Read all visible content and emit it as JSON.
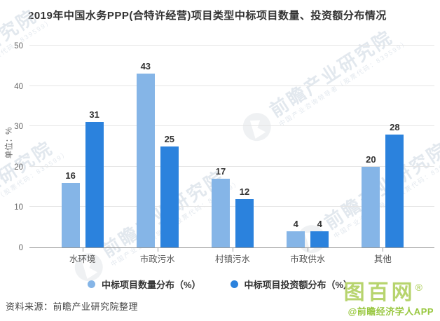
{
  "title": "2019年中国水务PPP(合特许经营)项目类型中标项目数量、投资额分布情况",
  "chart_data": {
    "type": "bar",
    "title": "2019年中国水务PPP(合特许经营)项目类型中标项目数量、投资额分布情况",
    "xlabel": "",
    "ylabel": "单位：%",
    "ylim": [
      0,
      50
    ],
    "ytick_step": 10,
    "y_ticks": [
      0,
      10,
      20,
      30,
      40,
      50
    ],
    "grid": true,
    "legend_position": "bottom",
    "categories": [
      "水环境",
      "市政污水",
      "村镇污水",
      "市政供水",
      "其他"
    ],
    "series": [
      {
        "name": "中标项目数量分布（%）",
        "color": "#85b5e7",
        "values": [
          16,
          43,
          17,
          4,
          20
        ]
      },
      {
        "name": "中标项目投资额分布（%）",
        "color": "#2b82dd",
        "values": [
          31,
          25,
          12,
          4,
          28
        ]
      }
    ]
  },
  "footer": {
    "source": "资料来源：前瞻产业研究院整理"
  },
  "watermark": {
    "text": "前瞻产业研究院",
    "subtext": "中国产业咨询领导者（股票代码：839599）"
  },
  "brand": {
    "logo": "图百网",
    "reg": "®",
    "app": "@前瞻经济学人APP"
  }
}
